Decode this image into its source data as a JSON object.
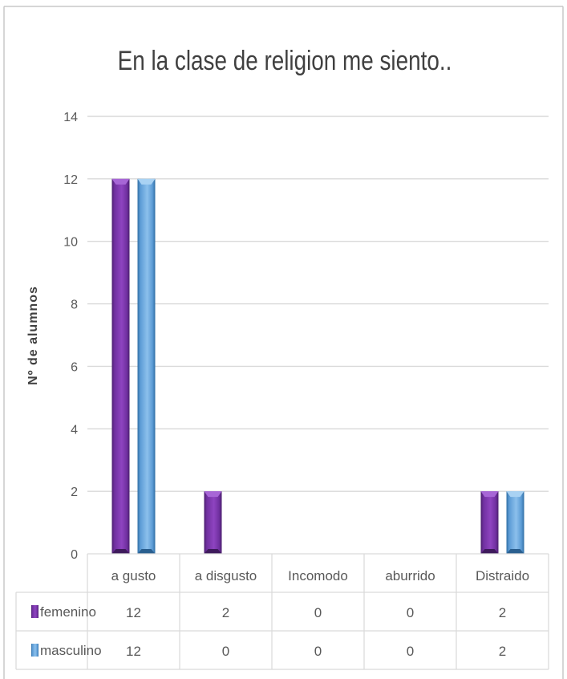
{
  "chart_data": {
    "type": "bar",
    "title": "En la clase de religion me siento..",
    "ylabel": "Nº de alumnos",
    "xlabel": "",
    "ylim": [
      0,
      14
    ],
    "yticks": [
      0,
      2,
      4,
      6,
      8,
      10,
      12,
      14
    ],
    "categories": [
      "a gusto",
      "a disgusto",
      "Incomodo",
      "aburrido",
      "Distraido"
    ],
    "series": [
      {
        "name": "femenino",
        "values": [
          12,
          2,
          0,
          0,
          2
        ],
        "color": "#7030a0"
      },
      {
        "name": "masculino",
        "values": [
          12,
          0,
          0,
          0,
          2
        ],
        "color": "#5b9bd5"
      }
    ],
    "grid": true,
    "legend": "data-table",
    "data_table": true
  }
}
